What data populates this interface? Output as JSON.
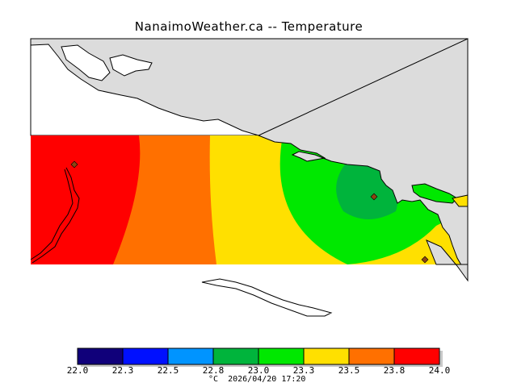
{
  "title": "NanaimoWeather.ca -- Temperature",
  "colorbar": {
    "ticks": [
      "22.0",
      "22.3",
      "22.5",
      "22.8",
      "23.0",
      "23.3",
      "23.5",
      "23.8",
      "24.0"
    ],
    "colors": [
      "#10007a",
      "#0010ff",
      "#0094ff",
      "#00b43c",
      "#00e800",
      "#ffe000",
      "#ff7000",
      "#ff0000"
    ]
  },
  "footer": {
    "unit": "°C",
    "timestamp": "2026/04/20 17:20"
  },
  "map": {
    "land_color": "#dcdcdc",
    "coast_color": "#000000",
    "station_color": "#8b4513"
  }
}
